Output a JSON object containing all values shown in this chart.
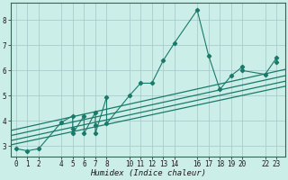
{
  "xlabel": "Humidex (Indice chaleur)",
  "background_color": "#cceee8",
  "grid_color": "#aacccc",
  "line_color": "#1a7a6a",
  "xlim": [
    -0.5,
    23.8
  ],
  "ylim": [
    2.6,
    8.7
  ],
  "xticks": [
    0,
    1,
    2,
    4,
    5,
    6,
    7,
    8,
    10,
    11,
    12,
    13,
    14,
    16,
    17,
    18,
    19,
    20,
    22,
    23
  ],
  "yticks": [
    3,
    4,
    5,
    6,
    7,
    8
  ],
  "series": [
    [
      0,
      2.9
    ],
    [
      1,
      2.82
    ],
    [
      2,
      2.9
    ],
    [
      4,
      3.95
    ],
    [
      5,
      4.2
    ],
    [
      5,
      3.7
    ],
    [
      5,
      3.5
    ],
    [
      6,
      4.2
    ],
    [
      6,
      3.5
    ],
    [
      7,
      4.35
    ],
    [
      7,
      3.85
    ],
    [
      7,
      3.5
    ],
    [
      8,
      4.95
    ],
    [
      8,
      3.9
    ],
    [
      10,
      5.0
    ],
    [
      11,
      5.5
    ],
    [
      12,
      5.5
    ],
    [
      13,
      6.4
    ],
    [
      14,
      7.1
    ],
    [
      16,
      8.4
    ],
    [
      17,
      6.6
    ],
    [
      18,
      5.25
    ],
    [
      19,
      5.8
    ],
    [
      20,
      6.15
    ],
    [
      20,
      6.0
    ],
    [
      22,
      5.85
    ],
    [
      23,
      6.5
    ],
    [
      23,
      6.35
    ]
  ],
  "regression_lines": [
    {
      "start_x": -0.5,
      "start_y": 3.05,
      "end_x": 23.8,
      "end_y": 5.38
    },
    {
      "start_x": -0.5,
      "start_y": 3.22,
      "end_x": 23.8,
      "end_y": 5.58
    },
    {
      "start_x": -0.5,
      "start_y": 3.42,
      "end_x": 23.8,
      "end_y": 5.8
    },
    {
      "start_x": -0.5,
      "start_y": 3.62,
      "end_x": 23.8,
      "end_y": 6.05
    }
  ]
}
